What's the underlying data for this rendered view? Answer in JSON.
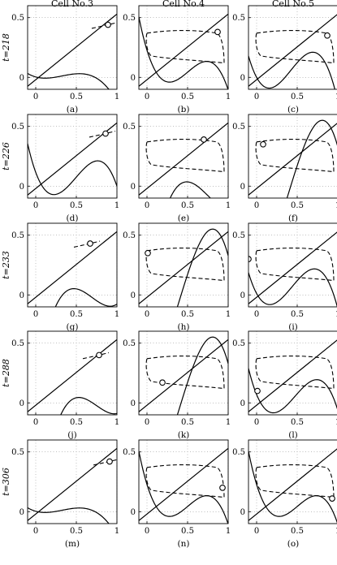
{
  "column_titles": [
    "Cell No.3",
    "Cell No.4",
    "Cell No.5"
  ],
  "row_labels": [
    "t=218",
    "t=226",
    "t=233",
    "t=288",
    "t=306"
  ],
  "chart_data": {
    "type": "line",
    "layout": "grid-5x3",
    "xlim": [
      -0.1,
      1.0
    ],
    "ylim": [
      -0.1,
      0.6
    ],
    "xticks": [
      0,
      0.5,
      1
    ],
    "xtick_labels": [
      "0",
      "0.5",
      "1"
    ],
    "yticks": [
      0,
      0.5
    ],
    "ytick_labels": [
      "0",
      "0.5"
    ],
    "grid": true,
    "panels": [
      {
        "label": "(a)",
        "cubic": [
          0.02,
          0.23,
          0.73,
          1.0
        ],
        "line": [
          -0.02,
          0.55
        ],
        "orbit": "none",
        "marker": [
          0.89,
          0.44
        ]
      },
      {
        "label": "(b)",
        "cubic": [
          0.16,
          0.42,
          0.94,
          3.6
        ],
        "line": [
          -0.02,
          0.55
        ],
        "orbit": "full",
        "marker": [
          0.87,
          0.38
        ]
      },
      {
        "label": "(c)",
        "cubic": [
          0.0,
          0.35,
          0.92,
          3.9
        ],
        "line": [
          -0.02,
          0.55
        ],
        "orbit": "full",
        "marker": [
          0.87,
          0.35
        ]
      },
      {
        "label": "(d)",
        "cubic": [
          0.08,
          0.4,
          1.0,
          3.6
        ],
        "line": [
          -0.02,
          0.55
        ],
        "orbit": "none",
        "marker": [
          0.86,
          0.44
        ]
      },
      {
        "label": "(e)",
        "cubic": [
          0.38,
          0.62,
          1.25,
          -3.3
        ],
        "line": [
          -0.02,
          0.55
        ],
        "orbit": "full",
        "marker": [
          0.7,
          0.39
        ]
      },
      {
        "label": "(f)",
        "cubic": [
          -0.35,
          0.42,
          1.1,
          4.2
        ],
        "line": [
          -0.02,
          0.55
        ],
        "orbit": "full",
        "marker": [
          0.08,
          0.35
        ]
      },
      {
        "label": "(g)",
        "cubic": [
          0.33,
          0.65,
          1.1,
          -3.3
        ],
        "line": [
          -0.02,
          0.55
        ],
        "orbit": "none",
        "marker": [
          0.67,
          0.43
        ]
      },
      {
        "label": "(h)",
        "cubic": [
          -0.35,
          0.42,
          1.1,
          4.2
        ],
        "line": [
          -0.02,
          0.55
        ],
        "orbit": "full",
        "marker": [
          0.01,
          0.35
        ]
      },
      {
        "label": "(i)",
        "cubic": [
          0.01,
          0.35,
          0.95,
          3.6
        ],
        "line": [
          -0.02,
          0.55
        ],
        "orbit": "full",
        "marker": [
          -0.1,
          0.3
        ]
      },
      {
        "label": "(j)",
        "cubic": [
          0.4,
          0.7,
          1.15,
          -3.3
        ],
        "line": [
          -0.02,
          0.55
        ],
        "orbit": "none",
        "marker": [
          0.78,
          0.4
        ]
      },
      {
        "label": "(k)",
        "cubic": [
          -0.35,
          0.42,
          1.1,
          4.2
        ],
        "line": [
          -0.02,
          0.55
        ],
        "orbit": "full",
        "marker": [
          0.19,
          0.17
        ]
      },
      {
        "label": "(l)",
        "cubic": [
          0.05,
          0.4,
          0.97,
          3.6
        ],
        "line": [
          -0.02,
          0.55
        ],
        "orbit": "full",
        "marker": [
          0.01,
          0.1
        ]
      },
      {
        "label": "(m)",
        "cubic": [
          0.02,
          0.23,
          0.73,
          1.0
        ],
        "line": [
          -0.02,
          0.55
        ],
        "orbit": "none",
        "marker": [
          0.91,
          0.42
        ]
      },
      {
        "label": "(n)",
        "cubic": [
          0.16,
          0.42,
          0.94,
          3.6
        ],
        "line": [
          -0.02,
          0.55
        ],
        "orbit": "full",
        "marker": [
          0.93,
          0.2
        ]
      },
      {
        "label": "(o)",
        "cubic": [
          0.16,
          0.42,
          0.94,
          3.6
        ],
        "line": [
          -0.02,
          0.55
        ],
        "orbit": "full",
        "marker": [
          0.93,
          0.11
        ]
      }
    ]
  }
}
